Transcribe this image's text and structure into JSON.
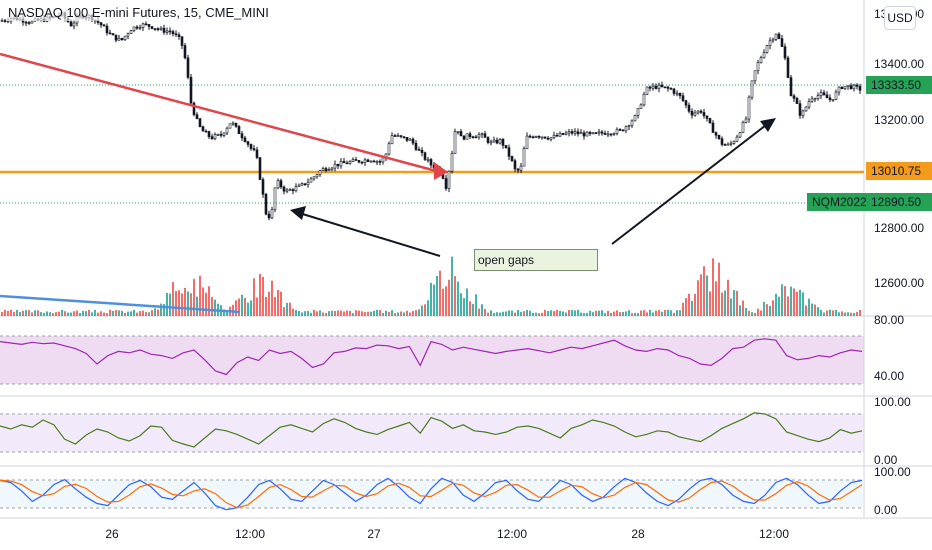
{
  "header": {
    "title": "NASDAQ 100 E-mini Futures, 15, CME_MINI",
    "currency_button": "USD"
  },
  "chart_data": {
    "type": "candlestick",
    "title": "NASDAQ 100 E-mini Futures, 15, CME_MINI",
    "price_axis": {
      "ticks": [
        "13600.00",
        "13400.00",
        "13200.00",
        "12800.00",
        "12600.00"
      ],
      "ylim": [
        12540,
        13640
      ]
    },
    "time_axis": {
      "labels": [
        "26",
        "12:00",
        "27",
        "12:00",
        "28",
        "12:00"
      ]
    },
    "price_path": [
      [
        0,
        13575
      ],
      [
        10,
        13585
      ],
      [
        20,
        13580
      ],
      [
        30,
        13570
      ],
      [
        40,
        13578
      ],
      [
        50,
        13585
      ],
      [
        60,
        13600
      ],
      [
        70,
        13560
      ],
      [
        80,
        13595
      ],
      [
        90,
        13590
      ],
      [
        100,
        13560
      ],
      [
        110,
        13520
      ],
      [
        120,
        13500
      ],
      [
        130,
        13545
      ],
      [
        140,
        13560
      ],
      [
        150,
        13555
      ],
      [
        160,
        13540
      ],
      [
        170,
        13535
      ],
      [
        180,
        13500
      ],
      [
        185,
        13420
      ],
      [
        190,
        13270
      ],
      [
        195,
        13210
      ],
      [
        200,
        13170
      ],
      [
        210,
        13140
      ],
      [
        220,
        13150
      ],
      [
        230,
        13200
      ],
      [
        240,
        13150
      ],
      [
        245,
        13130
      ],
      [
        250,
        13100
      ],
      [
        255,
        13080
      ],
      [
        260,
        12970
      ],
      [
        265,
        12860
      ],
      [
        270,
        12840
      ],
      [
        275,
        12980
      ],
      [
        285,
        12940
      ],
      [
        300,
        12960
      ],
      [
        310,
        12985
      ],
      [
        320,
        13020
      ],
      [
        335,
        13040
      ],
      [
        350,
        13050
      ],
      [
        370,
        13060
      ],
      [
        380,
        13050
      ],
      [
        385,
        13080
      ],
      [
        390,
        13150
      ],
      [
        400,
        13140
      ],
      [
        410,
        13130
      ],
      [
        420,
        13080
      ],
      [
        430,
        13040
      ],
      [
        440,
        13020
      ],
      [
        445,
        12960
      ],
      [
        450,
        13060
      ],
      [
        455,
        13190
      ],
      [
        460,
        13140
      ],
      [
        470,
        13150
      ],
      [
        480,
        13150
      ],
      [
        490,
        13120
      ],
      [
        500,
        13130
      ],
      [
        510,
        13060
      ],
      [
        515,
        13010
      ],
      [
        520,
        13030
      ],
      [
        525,
        13140
      ],
      [
        535,
        13150
      ],
      [
        550,
        13140
      ],
      [
        570,
        13160
      ],
      [
        590,
        13150
      ],
      [
        605,
        13160
      ],
      [
        620,
        13165
      ],
      [
        635,
        13220
      ],
      [
        645,
        13320
      ],
      [
        655,
        13330
      ],
      [
        670,
        13320
      ],
      [
        680,
        13290
      ],
      [
        690,
        13230
      ],
      [
        700,
        13240
      ],
      [
        710,
        13180
      ],
      [
        720,
        13120
      ],
      [
        728,
        13110
      ],
      [
        735,
        13140
      ],
      [
        745,
        13210
      ],
      [
        750,
        13330
      ],
      [
        755,
        13400
      ],
      [
        765,
        13480
      ],
      [
        775,
        13530
      ],
      [
        780,
        13490
      ],
      [
        785,
        13420
      ],
      [
        790,
        13300
      ],
      [
        795,
        13270
      ],
      [
        800,
        13220
      ],
      [
        810,
        13290
      ],
      [
        820,
        13300
      ],
      [
        830,
        13280
      ],
      [
        840,
        13330
      ],
      [
        850,
        13330
      ],
      [
        860,
        13320
      ]
    ],
    "levels": [
      {
        "price": 13010.75,
        "label": "13010.75",
        "color": "#f59b1c"
      },
      {
        "price": 12890.5,
        "label": "12890.50",
        "color": "#26a256"
      }
    ],
    "last_price": {
      "price": 13333.5,
      "label": "13333.50",
      "color": "#26a256"
    },
    "symbol_label": "NQM2022",
    "trendline_color": "#e0454c",
    "annotation": "open gaps",
    "volume_spikes": [
      {
        "x": 188,
        "v": 0.85
      },
      {
        "x": 261,
        "v": 0.7
      },
      {
        "x": 449,
        "v": 0.95
      },
      {
        "x": 712,
        "v": 0.95
      },
      {
        "x": 787,
        "v": 0.55
      }
    ],
    "oscillators": [
      {
        "id": "rsi",
        "color": "#9c27b0",
        "band_color": "#e1bee7",
        "ticks": [
          "80.00",
          "40.00"
        ],
        "values": [
          72,
          70,
          68,
          71,
          69,
          70,
          66,
          62,
          55,
          40,
          52,
          58,
          56,
          60,
          54,
          52,
          48,
          56,
          60,
          46,
          30,
          25,
          42,
          50,
          45,
          60,
          55,
          58,
          48,
          35,
          40,
          56,
          58,
          63,
          62,
          67,
          66,
          62,
          65,
          38,
          72,
          68,
          60,
          64,
          61,
          58,
          55,
          58,
          60,
          62,
          59,
          56,
          60,
          64,
          62,
          66,
          70,
          74,
          66,
          60,
          58,
          62,
          60,
          52,
          48,
          40,
          38,
          48,
          62,
          64,
          74,
          76,
          74,
          52,
          46,
          48,
          52,
          50,
          56,
          60,
          58
        ]
      },
      {
        "id": "cci",
        "color": "#4a7c1e",
        "band_color": "#e8d9f5",
        "ticks": [
          "100.00",
          "0.00"
        ],
        "values": [
          60,
          55,
          62,
          58,
          70,
          62,
          38,
          30,
          45,
          55,
          50,
          40,
          35,
          44,
          60,
          58,
          36,
          30,
          25,
          40,
          55,
          52,
          46,
          38,
          30,
          44,
          58,
          62,
          56,
          50,
          64,
          72,
          66,
          56,
          50,
          46,
          54,
          60,
          66,
          48,
          74,
          68,
          56,
          62,
          52,
          50,
          46,
          50,
          58,
          60,
          56,
          48,
          40,
          56,
          62,
          70,
          66,
          60,
          50,
          42,
          46,
          52,
          50,
          42,
          38,
          34,
          44,
          56,
          64,
          72,
          82,
          80,
          72,
          50,
          44,
          38,
          34,
          40,
          54,
          48,
          52
        ]
      },
      {
        "id": "stoch",
        "color": "#2962ff",
        "signal_color": "#ff6d00",
        "band_color": "#e3f0fb",
        "ticks": [
          "100.00",
          "0.00"
        ],
        "values": [
          80,
          75,
          55,
          30,
          45,
          70,
          82,
          60,
          40,
          25,
          20,
          45,
          70,
          80,
          65,
          40,
          35,
          55,
          75,
          50,
          20,
          10,
          15,
          40,
          70,
          80,
          60,
          35,
          30,
          55,
          80,
          70,
          50,
          30,
          45,
          70,
          85,
          65,
          40,
          25,
          60,
          85,
          75,
          45,
          30,
          50,
          75,
          80,
          55,
          35,
          30,
          55,
          80,
          70,
          45,
          30,
          40,
          65,
          85,
          75,
          50,
          30,
          20,
          35,
          60,
          80,
          85,
          70,
          45,
          30,
          25,
          45,
          75,
          85,
          70,
          45,
          25,
          30,
          55,
          75,
          80
        ]
      }
    ]
  }
}
